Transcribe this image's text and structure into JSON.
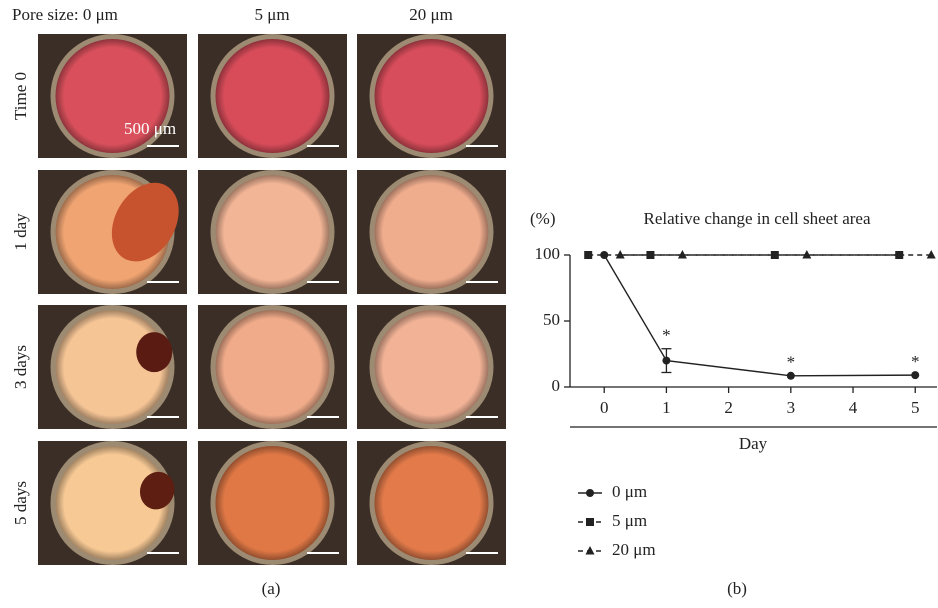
{
  "panel_a": {
    "column_labels": [
      "Pore size: 0 μm",
      "5 μm",
      "20 μm"
    ],
    "row_labels": [
      "Time 0",
      "1 day",
      "3 days",
      "5 days"
    ],
    "scale_bar": "500 μm",
    "panel_label": "(a)"
  },
  "chart_data": {
    "type": "line",
    "title": "Relative change in cell sheet area",
    "y_label": "(%)",
    "x_label": "Day",
    "panel_label": "(b)",
    "x": [
      0,
      1,
      3,
      5
    ],
    "series": [
      {
        "name": "0 μm",
        "color": "#222222",
        "line_style": "solid",
        "marker": "circle",
        "values": [
          100,
          20,
          8.5,
          9
        ],
        "errors": [
          null,
          9,
          null,
          null
        ]
      },
      {
        "name": "5 μm",
        "color": "#222222",
        "line_style": "dashed",
        "marker": "square",
        "values": [
          100,
          100,
          100,
          100
        ]
      },
      {
        "name": "20 μm",
        "color": "#222222",
        "line_style": "dashed",
        "marker": "triangle",
        "values": [
          100,
          100,
          100,
          100
        ]
      }
    ],
    "annotations": [
      {
        "x": 1,
        "text": "*"
      },
      {
        "x": 3,
        "text": "*"
      },
      {
        "x": 5,
        "text": "*"
      }
    ],
    "xlim": [
      -0.55,
      5.35
    ],
    "xticks": [
      0,
      1,
      2,
      3,
      4,
      5
    ],
    "ylim": [
      0,
      100
    ],
    "yticks": [
      0,
      50,
      100
    ],
    "legend": "bottom"
  }
}
